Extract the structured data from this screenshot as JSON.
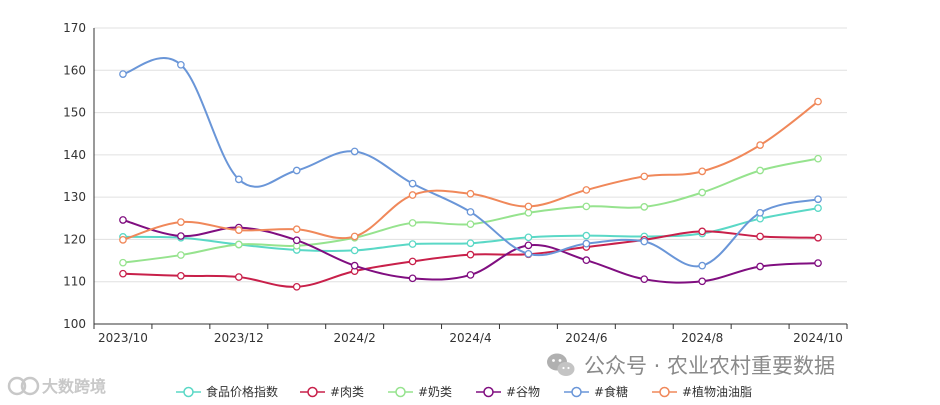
{
  "chart_data": {
    "type": "line",
    "x": [
      "2023/10",
      "2023/11",
      "2023/12",
      "2024/1",
      "2024/2",
      "2024/3",
      "2024/4",
      "2024/5",
      "2024/6",
      "2024/7",
      "2024/8",
      "2024/9",
      "2024/10"
    ],
    "xticks": [
      "2023/10",
      "2023/12",
      "2024/2",
      "2024/4",
      "2024/6",
      "2024/8",
      "2024/10"
    ],
    "yticks": [
      100,
      110,
      120,
      130,
      140,
      150,
      160,
      170
    ],
    "ylim": [
      100,
      170
    ],
    "grid": true,
    "legend_position": "bottom",
    "series": [
      {
        "name": "食品价格指数",
        "color": "#5ad8c6",
        "values": [
          120.6,
          120.4,
          118.8,
          117.5,
          117.4,
          118.9,
          119.1,
          120.5,
          120.9,
          120.7,
          121.4,
          124.9,
          127.4
        ]
      },
      {
        "name": "#肉类",
        "color": "#c8204a",
        "values": [
          111.9,
          111.4,
          111.1,
          108.8,
          112.5,
          114.8,
          116.4,
          116.5,
          118.2,
          119.9,
          121.9,
          120.7,
          120.4
        ]
      },
      {
        "name": "#奶类",
        "color": "#96e38e",
        "values": [
          114.5,
          116.3,
          118.8,
          118.5,
          120.4,
          123.9,
          123.6,
          126.3,
          127.8,
          127.7,
          131.1,
          136.3,
          139.1
        ]
      },
      {
        "name": "#谷物",
        "color": "#800e80",
        "values": [
          124.6,
          120.8,
          122.8,
          119.8,
          113.8,
          110.8,
          111.6,
          118.6,
          115.1,
          110.6,
          110.1,
          113.6,
          114.4
        ]
      },
      {
        "name": "#食糖",
        "color": "#6a96d8",
        "values": [
          159.1,
          161.3,
          134.2,
          136.3,
          140.8,
          133.2,
          126.5,
          116.6,
          119.0,
          119.5,
          113.8,
          126.3,
          129.5
        ]
      },
      {
        "name": "#植物油油脂",
        "color": "#f0885a",
        "values": [
          119.9,
          124.1,
          122.2,
          122.4,
          120.7,
          130.5,
          130.8,
          127.8,
          131.7,
          134.9,
          136.1,
          142.3,
          152.6
        ]
      }
    ]
  },
  "watermark": {
    "wechat": "公众号 · 农业农村重要数据",
    "brand": "大数跨境"
  },
  "icons": {
    "wechat": "wechat-icon",
    "brand": "brand-logo-icon"
  }
}
